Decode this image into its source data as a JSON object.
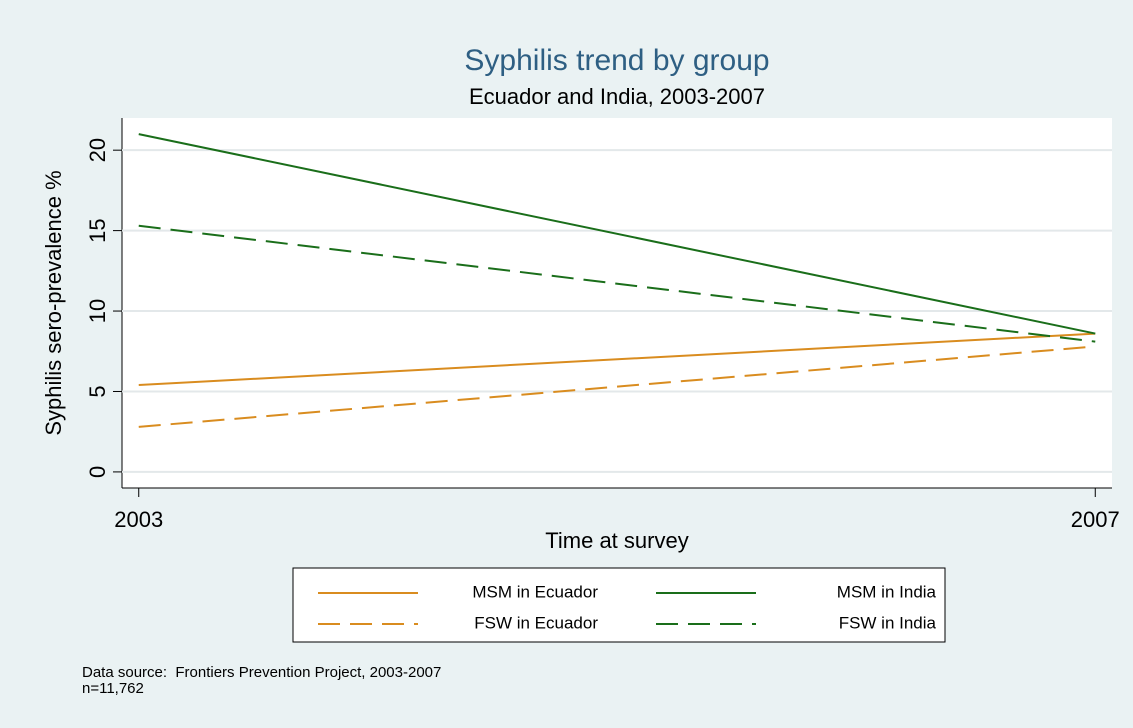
{
  "chart_data": {
    "type": "line",
    "title": "Syphilis trend by group",
    "subtitle": "Ecuador and India, 2003-2007",
    "y_label": "Syphilis sero-prevalence %",
    "x_label": "Time at survey",
    "x": [
      2003,
      2007
    ],
    "series": [
      {
        "name": "MSM in Ecuador",
        "color": "#d98c1f",
        "dash": false,
        "values": [
          5.4,
          8.6
        ]
      },
      {
        "name": "MSM in India",
        "color": "#1a6e1a",
        "dash": false,
        "values": [
          21.0,
          8.6
        ]
      },
      {
        "name": "FSW in Ecuador",
        "color": "#d98c1f",
        "dash": true,
        "values": [
          2.8,
          7.8
        ]
      },
      {
        "name": "FSW in India",
        "color": "#1a6e1a",
        "dash": true,
        "values": [
          15.3,
          8.1
        ]
      }
    ],
    "xlim": [
      2002.93,
      2007.07
    ],
    "xticks": [
      2003,
      2007
    ],
    "ylim": [
      -1,
      22
    ],
    "yticks": [
      0,
      5,
      10,
      15,
      20
    ],
    "grid": true,
    "legend": "bottom",
    "note": [
      "Data source:  Frontiers Prevention Project, 2003-2007",
      "n=11,762"
    ]
  }
}
